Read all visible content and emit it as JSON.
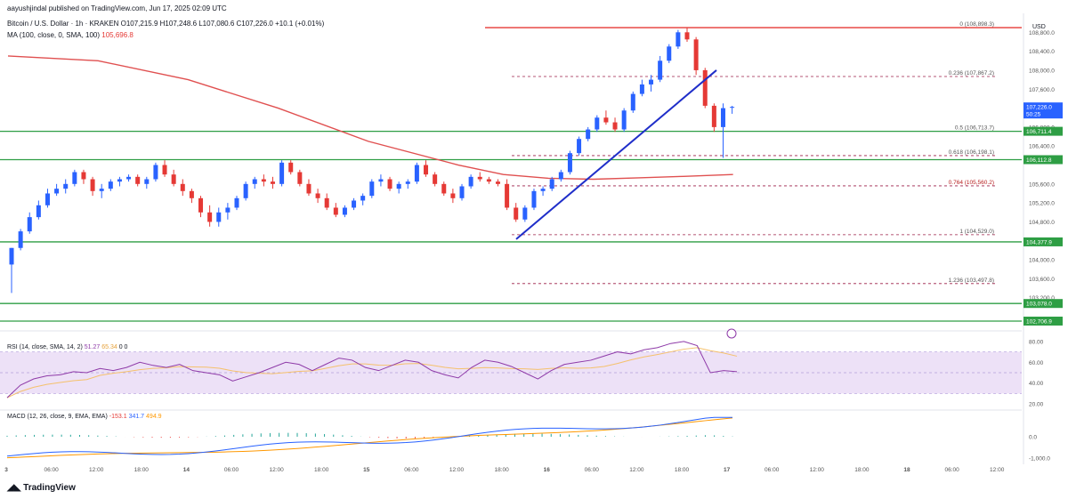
{
  "header": {
    "publisher": "aayushjindal published on TradingView.com, Jun 17, 2025 02:09 UTC",
    "symbol_line": "Bitcoin / U.S. Dollar · 1h · KRAKEN",
    "ohlc": "O107,215.9 H107,248.6 L107,080.6 C107,226.0 +10.1 (+0.01%)",
    "ma_label": "MA (100, close, 0, SMA, 100)",
    "ma_value": "105,696.8",
    "currency": "USD",
    "footer": "TradingView"
  },
  "colors": {
    "up": "#2962ff",
    "down": "#e53935",
    "ma": "#e05050",
    "support": "#2e9e44",
    "trendline": "#1f2ec9",
    "fib": "#9c1f47",
    "rsi": "#8e3aa8",
    "macd": "#2962ff",
    "signal": "#ff9800"
  },
  "chart_data": [
    {
      "type": "candlestick",
      "title": "Bitcoin / U.S. Dollar · 1h · KRAKEN",
      "ylim": [
        102500,
        109200
      ],
      "y_ticks": [
        "108,800.0",
        "108,400.0",
        "108,000.0",
        "107,600.0",
        "106,800.0",
        "106,400.0",
        "105,600.0",
        "105,200.0",
        "104,800.0",
        "104,000.0",
        "103,600.0",
        "103,200.0"
      ],
      "x_ticks": [
        "3",
        "06:00",
        "12:00",
        "18:00",
        "14",
        "06:00",
        "12:00",
        "18:00",
        "15",
        "06:00",
        "12:00",
        "18:00",
        "16",
        "06:00",
        "12:00",
        "18:00",
        "17",
        "06:00",
        "12:00",
        "18:00",
        "18",
        "06:00",
        "12:00"
      ],
      "price_tags": [
        {
          "label": "107,226.0",
          "sub": "50:25",
          "value": 107226,
          "color": "#2962ff"
        },
        {
          "label": "106,711.4",
          "value": 106711.4,
          "color": "#2e9e44"
        },
        {
          "label": "106,112.8",
          "value": 106112.8,
          "color": "#2e9e44"
        },
        {
          "label": "104,377.9",
          "value": 104377.9,
          "color": "#2e9e44"
        },
        {
          "label": "103,078.0",
          "value": 103078,
          "color": "#2e9e44"
        },
        {
          "label": "102,706.9",
          "value": 102706.9,
          "color": "#2e9e44"
        }
      ],
      "support_lines": [
        106711.4,
        106112.8,
        104377.9,
        103078.0,
        102706.9
      ],
      "resistance_line": 108898.3,
      "fib_levels": [
        {
          "label": "0 (108,898.3)",
          "value": 108898.3
        },
        {
          "label": "0.236 (107,867.2)",
          "value": 107867.2
        },
        {
          "label": "0.5 (106,713.7)",
          "value": 106713.7
        },
        {
          "label": "0.618 (106,198.1)",
          "value": 106198.1
        },
        {
          "label": "0.764 (105,560.2)",
          "value": 105560.2
        },
        {
          "label": "1 (104,529.0)",
          "value": 104529.0
        },
        {
          "label": "1.236 (103,497.8)",
          "value": 103497.8
        }
      ],
      "trendline": {
        "from": [
          4.9,
          104529
        ],
        "to": [
          15.7,
          108000
        ]
      },
      "ma_series": [
        [
          0,
          108300
        ],
        [
          2,
          108200
        ],
        [
          4,
          107800
        ],
        [
          6,
          107200
        ],
        [
          8,
          106500
        ],
        [
          10,
          106000
        ],
        [
          11,
          105800
        ],
        [
          12,
          105720
        ],
        [
          13,
          105700
        ],
        [
          14,
          105730
        ],
        [
          15,
          105760
        ],
        [
          16.1,
          105800
        ]
      ],
      "candles": [
        [
          0,
          103900,
          104250,
          103300,
          104250
        ],
        [
          0.2,
          104250,
          104650,
          104200,
          104600
        ],
        [
          0.4,
          104600,
          105000,
          104550,
          104900
        ],
        [
          0.6,
          104900,
          105250,
          104850,
          105150
        ],
        [
          0.8,
          105150,
          105500,
          105100,
          105400
        ],
        [
          1,
          105400,
          105600,
          105350,
          105500
        ],
        [
          1.2,
          105500,
          105700,
          105400,
          105600
        ],
        [
          1.4,
          105600,
          105900,
          105550,
          105850
        ],
        [
          1.6,
          105850,
          105900,
          105600,
          105700
        ],
        [
          1.8,
          105700,
          105750,
          105350,
          105450
        ],
        [
          2,
          105450,
          105600,
          105300,
          105500
        ],
        [
          2.2,
          105500,
          105700,
          105450,
          105650
        ],
        [
          2.4,
          105650,
          105750,
          105550,
          105700
        ],
        [
          2.6,
          105700,
          105800,
          105650,
          105750
        ],
        [
          2.8,
          105750,
          105800,
          105550,
          105600
        ],
        [
          3,
          105600,
          105750,
          105500,
          105700
        ],
        [
          3.2,
          105700,
          106050,
          105650,
          106000
        ],
        [
          3.4,
          106000,
          106100,
          105750,
          105800
        ],
        [
          3.6,
          105800,
          105900,
          105550,
          105600
        ],
        [
          3.8,
          105600,
          105700,
          105350,
          105450
        ],
        [
          4,
          105450,
          105500,
          105200,
          105300
        ],
        [
          4.2,
          105300,
          105350,
          104900,
          105000
        ],
        [
          4.4,
          105000,
          105150,
          104700,
          104800
        ],
        [
          4.6,
          104800,
          105100,
          104700,
          105000
        ],
        [
          4.8,
          105000,
          105200,
          104850,
          105100
        ],
        [
          5,
          105100,
          105350,
          105050,
          105300
        ],
        [
          5.2,
          105300,
          105650,
          105250,
          105600
        ],
        [
          5.4,
          105600,
          105750,
          105500,
          105700
        ],
        [
          5.6,
          105700,
          105800,
          105550,
          105650
        ],
        [
          5.8,
          105650,
          105750,
          105500,
          105600
        ],
        [
          6,
          105600,
          106100,
          105550,
          106050
        ],
        [
          6.2,
          106050,
          106100,
          105800,
          105850
        ],
        [
          6.4,
          105850,
          105900,
          105550,
          105600
        ],
        [
          6.6,
          105600,
          105700,
          105350,
          105400
        ],
        [
          6.8,
          105400,
          105500,
          105200,
          105300
        ],
        [
          7,
          105300,
          105400,
          105050,
          105100
        ],
        [
          7.2,
          105100,
          105200,
          104900,
          104950
        ],
        [
          7.4,
          104950,
          105150,
          104900,
          105100
        ],
        [
          7.6,
          105100,
          105300,
          105050,
          105250
        ],
        [
          7.8,
          105250,
          105400,
          105150,
          105350
        ],
        [
          8,
          105350,
          105700,
          105300,
          105650
        ],
        [
          8.2,
          105650,
          105800,
          105550,
          105700
        ],
        [
          8.4,
          105700,
          105750,
          105450,
          105500
        ],
        [
          8.6,
          105500,
          105650,
          105400,
          105600
        ],
        [
          8.8,
          105600,
          105700,
          105500,
          105650
        ],
        [
          9,
          105650,
          106050,
          105600,
          106000
        ],
        [
          9.2,
          106000,
          106100,
          105750,
          105800
        ],
        [
          9.4,
          105800,
          105850,
          105550,
          105600
        ],
        [
          9.6,
          105600,
          105650,
          105350,
          105400
        ],
        [
          9.8,
          105400,
          105500,
          105200,
          105300
        ],
        [
          10,
          105300,
          105600,
          105250,
          105550
        ],
        [
          10.2,
          105550,
          105800,
          105500,
          105750
        ],
        [
          10.4,
          105750,
          105850,
          105650,
          105700
        ],
        [
          10.6,
          105700,
          105750,
          105600,
          105650
        ],
        [
          10.8,
          105650,
          105700,
          105550,
          105600
        ],
        [
          11,
          105600,
          105700,
          105050,
          105100
        ],
        [
          11.2,
          105100,
          105200,
          104800,
          104850
        ],
        [
          11.4,
          104850,
          105150,
          104800,
          105100
        ],
        [
          11.6,
          105100,
          105500,
          105050,
          105450
        ],
        [
          11.8,
          105450,
          105550,
          105350,
          105500
        ],
        [
          12,
          105500,
          105750,
          105450,
          105700
        ],
        [
          12.2,
          105700,
          105900,
          105650,
          105850
        ],
        [
          12.4,
          105850,
          106300,
          105800,
          106250
        ],
        [
          12.6,
          106250,
          106600,
          106200,
          106550
        ],
        [
          12.8,
          106550,
          106800,
          106500,
          106750
        ],
        [
          13,
          106750,
          107050,
          106700,
          107000
        ],
        [
          13.2,
          107000,
          107150,
          106850,
          106900
        ],
        [
          13.4,
          106900,
          107000,
          106700,
          106750
        ],
        [
          13.6,
          106750,
          107200,
          106700,
          107150
        ],
        [
          13.8,
          107150,
          107550,
          107100,
          107500
        ],
        [
          14,
          107500,
          107800,
          107450,
          107700
        ],
        [
          14.2,
          107700,
          107900,
          107550,
          107800
        ],
        [
          14.4,
          107800,
          108300,
          107750,
          108200
        ],
        [
          14.6,
          108200,
          108550,
          108150,
          108500
        ],
        [
          14.8,
          108500,
          108850,
          108450,
          108800
        ],
        [
          15,
          108800,
          108898,
          108600,
          108650
        ],
        [
          15.2,
          108650,
          108700,
          107900,
          108000
        ],
        [
          15.4,
          108000,
          108050,
          107200,
          107250
        ],
        [
          15.6,
          107250,
          107300,
          106700,
          106800
        ],
        [
          15.8,
          106800,
          107300,
          106150,
          107200
        ],
        [
          16,
          107215.9,
          107248.6,
          107080.6,
          107226
        ]
      ]
    },
    {
      "type": "line",
      "title": "RSI (14, close, SMA, 14, 2)",
      "values_label": [
        "51.27",
        "65.34",
        "0",
        "0"
      ],
      "ylim": [
        15,
        85
      ],
      "y_ticks": [
        "80.00",
        "60.00",
        "40.00",
        "20.00"
      ],
      "band": [
        30,
        70
      ],
      "series": [
        {
          "values": [
            26,
            38,
            44,
            47,
            48,
            51,
            50,
            54,
            52,
            55,
            60,
            57,
            55,
            58,
            52,
            50,
            48,
            42,
            46,
            50,
            55,
            60,
            58,
            52,
            58,
            64,
            62,
            55,
            52,
            57,
            62,
            60,
            52,
            48,
            45,
            55,
            62,
            60,
            56,
            50,
            44,
            52,
            58,
            60,
            62,
            66,
            70,
            68,
            72,
            74,
            78,
            80,
            76,
            50,
            52,
            51
          ]
        }
      ]
    },
    {
      "type": "line",
      "title": "MACD (12, 26, close, 9, EMA, EMA)",
      "values_label": [
        "-153.1",
        "341.7",
        "494.9"
      ],
      "ylim": [
        -1200,
        1200
      ],
      "y_ticks": [
        "0.0",
        "-1,000.0"
      ]
    }
  ]
}
